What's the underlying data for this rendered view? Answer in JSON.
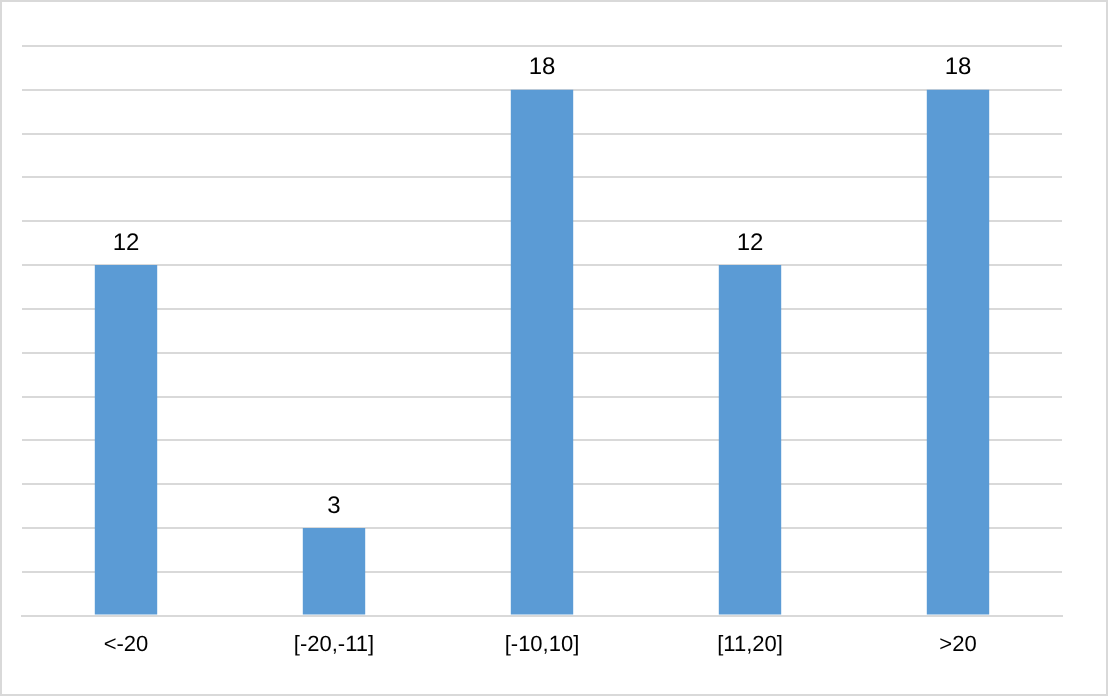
{
  "chart_data": {
    "type": "bar",
    "categories": [
      "<-20",
      "[-20,-11]",
      "[-10,10]",
      "[11,20]",
      ">20"
    ],
    "values": [
      12,
      3,
      18,
      12,
      18
    ],
    "color": "#5b9bd5",
    "ylim": [
      0,
      19.5
    ],
    "yticks": [
      {
        "value": 0,
        "label": null
      },
      {
        "value": 1.5,
        "label": null
      },
      {
        "value": 3,
        "label": null
      },
      {
        "value": 4.5,
        "label": null
      },
      {
        "value": 6,
        "label": null
      },
      {
        "value": 7.5,
        "label": null
      },
      {
        "value": 9,
        "label": null
      },
      {
        "value": 10.5,
        "label": null
      },
      {
        "value": 12,
        "label": null
      },
      {
        "value": 13.5,
        "label": null
      },
      {
        "value": 15,
        "label": null
      },
      {
        "value": 16.5,
        "label": null
      },
      {
        "value": 18,
        "label": null
      },
      {
        "value": 19.5,
        "label": null
      }
    ],
    "grid": "y",
    "tick_labels": "x",
    "data_labels": true
  }
}
